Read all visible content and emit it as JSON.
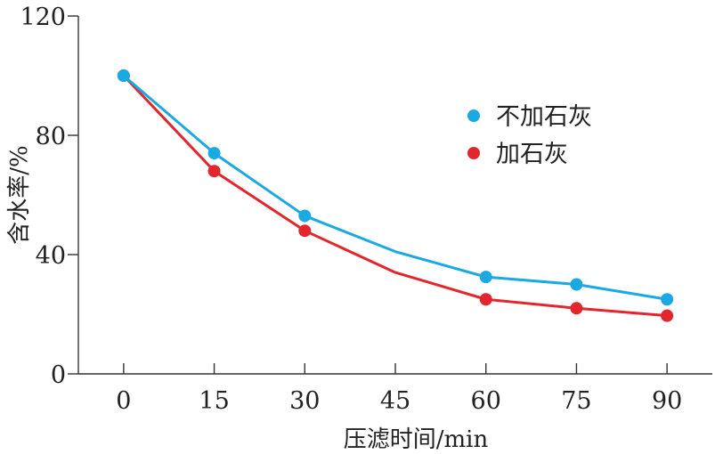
{
  "chart_data": {
    "type": "line",
    "title": "",
    "xlabel": "压滤时间/min",
    "ylabel": "含水率/%",
    "x": [
      0,
      15,
      30,
      45,
      60,
      75,
      90
    ],
    "xlim": [
      -7.5,
      97.5
    ],
    "ylim": [
      0,
      120
    ],
    "x_ticks": [
      "0",
      "15",
      "30",
      "45",
      "60",
      "75",
      "90"
    ],
    "y_ticks": [
      "0",
      "40",
      "80",
      "120"
    ],
    "legend_position": "right",
    "grid": false,
    "series": [
      {
        "name": "不加石灰",
        "color": "#1ba9e1",
        "values": [
          100,
          74,
          53,
          41,
          32.5,
          30,
          25
        ],
        "markers": [
          true,
          true,
          true,
          false,
          true,
          true,
          true
        ]
      },
      {
        "name": "加石灰",
        "color": "#e3262d",
        "values": [
          100,
          68,
          48,
          34,
          25,
          22,
          19.5
        ],
        "markers": [
          true,
          true,
          true,
          false,
          true,
          true,
          true
        ]
      }
    ]
  }
}
